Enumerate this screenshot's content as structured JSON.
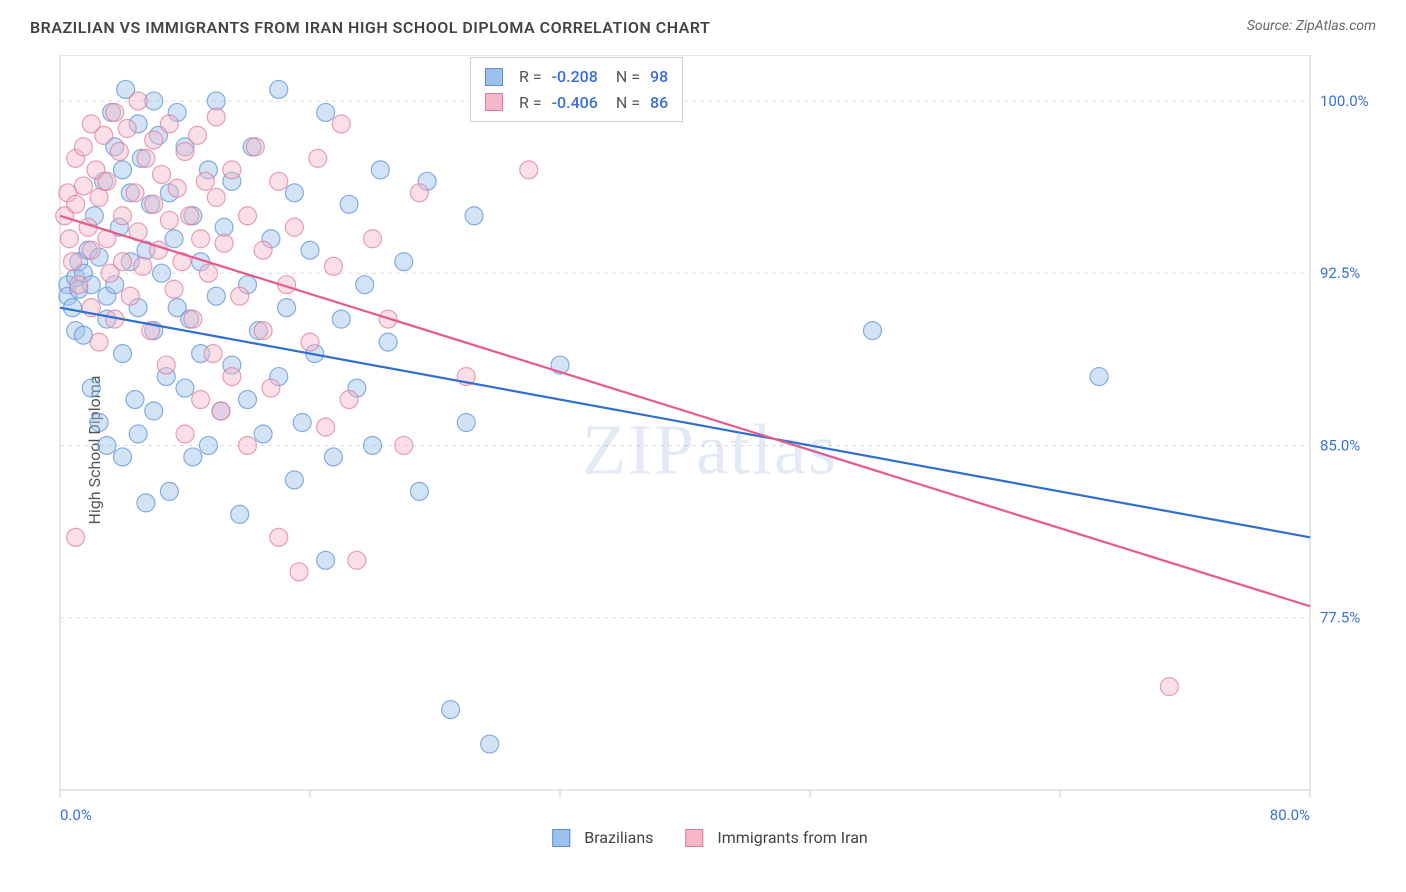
{
  "title": "BRAZILIAN VS IMMIGRANTS FROM IRAN HIGH SCHOOL DIPLOMA CORRELATION CHART",
  "source": "Source: ZipAtlas.com",
  "watermark": "ZIPatlas",
  "y_axis_label": "High School Diploma",
  "chart": {
    "type": "scatter-regression",
    "background_color": "#ffffff",
    "plot_border_color": "#cccccc",
    "grid_color": "#dddddd",
    "grid_dash": "4,4",
    "xlim": [
      0,
      80
    ],
    "ylim": [
      70,
      102
    ],
    "x_ticks": [
      0,
      16,
      32,
      48,
      64,
      80
    ],
    "x_tick_labels_shown": {
      "0": "0.0%",
      "80": "80.0%"
    },
    "y_grid_lines": [
      77.5,
      85.0,
      92.5,
      100.0
    ],
    "y_tick_labels": [
      "77.5%",
      "85.0%",
      "92.5%",
      "100.0%"
    ],
    "tick_label_color": "#3a6fd8",
    "tick_label_fontsize": 15,
    "marker_radius": 9,
    "marker_opacity": 0.45,
    "series": [
      {
        "key": "brazilians",
        "label": "Brazilians",
        "fill": "#9cc1ec",
        "stroke": "#5a8fd6",
        "line_color": "#2f6fd0",
        "line_width": 2.2,
        "R": "-0.208",
        "N": "98",
        "reg_y_at_x0": 91.0,
        "reg_y_at_xmax": 81.0,
        "points": [
          [
            0.5,
            92
          ],
          [
            0.5,
            91.5
          ],
          [
            0.8,
            91
          ],
          [
            1,
            92.3
          ],
          [
            1,
            90
          ],
          [
            1.2,
            93
          ],
          [
            1.2,
            91.8
          ],
          [
            1.5,
            92.5
          ],
          [
            1.5,
            89.8
          ],
          [
            1.8,
            93.5
          ],
          [
            2,
            92
          ],
          [
            2,
            87.5
          ],
          [
            2.2,
            95
          ],
          [
            2.5,
            93.2
          ],
          [
            2.5,
            86
          ],
          [
            2.8,
            96.5
          ],
          [
            3,
            91.5
          ],
          [
            3,
            90.5
          ],
          [
            3,
            85
          ],
          [
            3.3,
            99.5
          ],
          [
            3.5,
            98
          ],
          [
            3.5,
            92
          ],
          [
            3.8,
            94.5
          ],
          [
            4,
            97
          ],
          [
            4,
            89
          ],
          [
            4,
            84.5
          ],
          [
            4.2,
            100.5
          ],
          [
            4.5,
            96
          ],
          [
            4.5,
            93
          ],
          [
            4.8,
            87
          ],
          [
            5,
            91
          ],
          [
            5,
            99
          ],
          [
            5,
            85.5
          ],
          [
            5.2,
            97.5
          ],
          [
            5.5,
            93.5
          ],
          [
            5.5,
            82.5
          ],
          [
            5.8,
            95.5
          ],
          [
            6,
            100
          ],
          [
            6,
            90
          ],
          [
            6,
            86.5
          ],
          [
            6.3,
            98.5
          ],
          [
            6.5,
            92.5
          ],
          [
            6.8,
            88
          ],
          [
            7,
            96
          ],
          [
            7,
            83
          ],
          [
            7.3,
            94
          ],
          [
            7.5,
            91
          ],
          [
            7.5,
            99.5
          ],
          [
            8,
            98
          ],
          [
            8,
            87.5
          ],
          [
            8.3,
            90.5
          ],
          [
            8.5,
            95
          ],
          [
            8.5,
            84.5
          ],
          [
            9,
            93
          ],
          [
            9,
            89
          ],
          [
            9.5,
            97
          ],
          [
            9.5,
            85
          ],
          [
            10,
            91.5
          ],
          [
            10,
            100
          ],
          [
            10.3,
            86.5
          ],
          [
            10.5,
            94.5
          ],
          [
            11,
            88.5
          ],
          [
            11,
            96.5
          ],
          [
            11.5,
            82
          ],
          [
            12,
            92
          ],
          [
            12,
            87
          ],
          [
            12.3,
            98
          ],
          [
            12.7,
            90
          ],
          [
            13,
            85.5
          ],
          [
            13.5,
            94
          ],
          [
            14,
            100.5
          ],
          [
            14,
            88
          ],
          [
            14.5,
            91
          ],
          [
            15,
            96
          ],
          [
            15,
            83.5
          ],
          [
            15.5,
            86
          ],
          [
            16,
            93.5
          ],
          [
            16.3,
            89
          ],
          [
            17,
            99.5
          ],
          [
            17,
            80
          ],
          [
            17.5,
            84.5
          ],
          [
            18,
            90.5
          ],
          [
            18.5,
            95.5
          ],
          [
            19,
            87.5
          ],
          [
            19.5,
            92
          ],
          [
            20,
            85
          ],
          [
            20.5,
            97
          ],
          [
            21,
            89.5
          ],
          [
            22,
            93
          ],
          [
            23,
            83
          ],
          [
            23.5,
            96.5
          ],
          [
            25,
            73.5
          ],
          [
            26,
            86
          ],
          [
            26.5,
            95
          ],
          [
            27.5,
            72
          ],
          [
            32,
            88.5
          ],
          [
            52,
            90
          ],
          [
            66.5,
            88
          ]
        ]
      },
      {
        "key": "iran",
        "label": "Immigrants from Iran",
        "fill": "#f4b8c8",
        "stroke": "#e07a9a",
        "line_color": "#e85a8a",
        "line_width": 2.2,
        "R": "-0.406",
        "N": "86",
        "reg_y_at_x0": 95.0,
        "reg_y_at_xmax": 78.0,
        "points": [
          [
            0.3,
            95
          ],
          [
            0.5,
            96
          ],
          [
            0.6,
            94
          ],
          [
            0.8,
            93
          ],
          [
            1,
            97.5
          ],
          [
            1,
            95.5
          ],
          [
            1.2,
            92
          ],
          [
            1.5,
            98
          ],
          [
            1.5,
            96.3
          ],
          [
            1.8,
            94.5
          ],
          [
            2,
            99
          ],
          [
            2,
            93.5
          ],
          [
            2,
            91
          ],
          [
            2.3,
            97
          ],
          [
            2.5,
            95.8
          ],
          [
            2.5,
            89.5
          ],
          [
            2.8,
            98.5
          ],
          [
            3,
            96.5
          ],
          [
            3,
            94
          ],
          [
            3.2,
            92.5
          ],
          [
            3.5,
            99.5
          ],
          [
            3.5,
            90.5
          ],
          [
            3.8,
            97.8
          ],
          [
            4,
            95
          ],
          [
            4,
            93
          ],
          [
            4.3,
            98.8
          ],
          [
            4.5,
            91.5
          ],
          [
            4.8,
            96
          ],
          [
            5,
            94.3
          ],
          [
            5,
            100
          ],
          [
            5.3,
            92.8
          ],
          [
            5.5,
            97.5
          ],
          [
            5.8,
            90
          ],
          [
            6,
            95.5
          ],
          [
            6,
            98.3
          ],
          [
            6.3,
            93.5
          ],
          [
            6.5,
            96.8
          ],
          [
            6.8,
            88.5
          ],
          [
            7,
            94.8
          ],
          [
            7,
            99
          ],
          [
            7.3,
            91.8
          ],
          [
            7.5,
            96.2
          ],
          [
            7.8,
            93
          ],
          [
            8,
            97.8
          ],
          [
            8,
            85.5
          ],
          [
            8.3,
            95
          ],
          [
            8.5,
            90.5
          ],
          [
            8.8,
            98.5
          ],
          [
            9,
            94
          ],
          [
            9,
            87
          ],
          [
            9.3,
            96.5
          ],
          [
            9.5,
            92.5
          ],
          [
            9.8,
            89
          ],
          [
            10,
            95.8
          ],
          [
            10,
            99.3
          ],
          [
            10.3,
            86.5
          ],
          [
            10.5,
            93.8
          ],
          [
            11,
            97
          ],
          [
            11,
            88
          ],
          [
            11.5,
            91.5
          ],
          [
            12,
            95
          ],
          [
            12,
            85
          ],
          [
            12.5,
            98
          ],
          [
            13,
            90
          ],
          [
            13,
            93.5
          ],
          [
            13.5,
            87.5
          ],
          [
            14,
            96.5
          ],
          [
            14,
            81
          ],
          [
            14.5,
            92
          ],
          [
            15,
            94.5
          ],
          [
            15.3,
            79.5
          ],
          [
            16,
            89.5
          ],
          [
            16.5,
            97.5
          ],
          [
            17,
            85.8
          ],
          [
            17.5,
            92.8
          ],
          [
            18,
            99
          ],
          [
            18.5,
            87
          ],
          [
            19,
            80
          ],
          [
            20,
            94
          ],
          [
            21,
            90.5
          ],
          [
            22,
            85
          ],
          [
            23,
            96
          ],
          [
            26,
            88
          ],
          [
            30,
            97
          ],
          [
            71,
            74.5
          ],
          [
            1,
            81
          ]
        ]
      }
    ]
  },
  "bottom_legend": [
    {
      "key": "brazilians",
      "label": "Brazilians"
    },
    {
      "key": "iran",
      "label": "Immigrants from Iran"
    }
  ]
}
